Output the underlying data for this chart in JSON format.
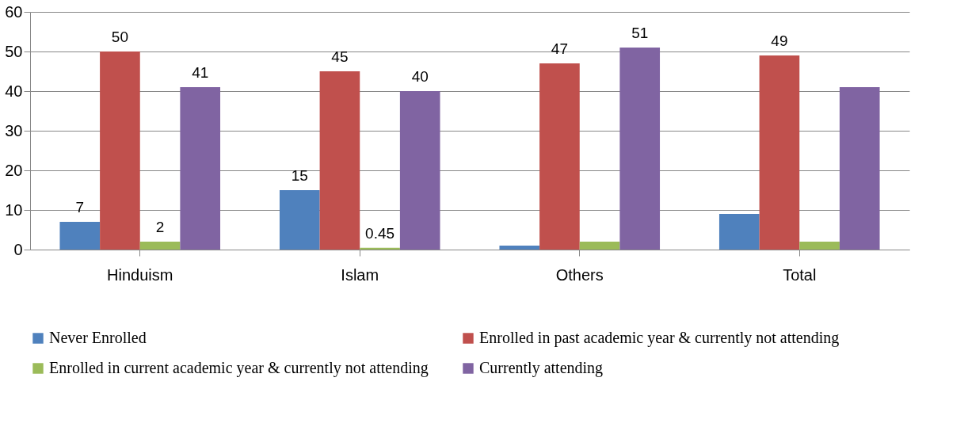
{
  "chart_data": {
    "type": "bar",
    "categories": [
      "Hinduism",
      "Islam",
      "Others",
      "Total"
    ],
    "series": [
      {
        "name": "Never Enrolled",
        "color": "#4f81bd",
        "values": [
          7,
          15,
          1,
          9
        ],
        "value_labels": [
          "7",
          "15",
          null,
          null
        ]
      },
      {
        "name": "Enrolled in past academic year & currently not attending",
        "color": "#c0504d",
        "values": [
          50,
          45,
          47,
          49
        ],
        "value_labels": [
          "50",
          "45",
          "47",
          "49"
        ]
      },
      {
        "name": "Enrolled in current academic year & currently not attending",
        "color": "#9bbb59",
        "values": [
          2,
          0.45,
          2,
          2
        ],
        "value_labels": [
          "2",
          "0.45",
          null,
          null
        ]
      },
      {
        "name": "Currently attending",
        "color": "#8064a2",
        "values": [
          41,
          40,
          51,
          41
        ],
        "value_labels": [
          "41",
          "40",
          "51",
          null
        ]
      }
    ],
    "ylim": [
      0,
      60
    ],
    "yticks": [
      0,
      10,
      20,
      30,
      40,
      50,
      60
    ],
    "grid": "y",
    "legend": "bottom"
  }
}
